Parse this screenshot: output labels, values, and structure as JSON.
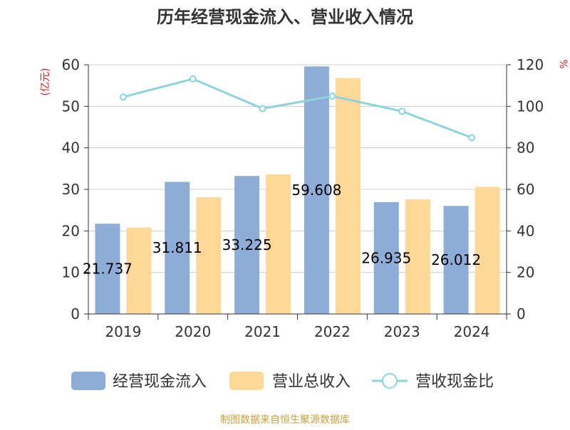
{
  "chart_data": {
    "type": "bar",
    "title": "历年经营现金流入、营业收入情况",
    "categories": [
      "2019",
      "2020",
      "2021",
      "2022",
      "2023",
      "2024"
    ],
    "y_left": {
      "label": "(亿元)",
      "ylim": [
        0,
        60
      ],
      "ticks": [
        0,
        10,
        20,
        30,
        40,
        50,
        60
      ]
    },
    "y_right": {
      "label": "%",
      "ylim": [
        0,
        120
      ],
      "ticks": [
        0,
        20,
        40,
        60,
        80,
        100,
        120
      ]
    },
    "series": [
      {
        "name": "经营现金流入",
        "kind": "bar",
        "axis": "left",
        "color": "#8eacd8",
        "values": [
          21.737,
          31.811,
          33.225,
          59.608,
          26.935,
          26.012
        ],
        "labels": [
          "21.737",
          "31.811",
          "33.225",
          "59.608",
          "26.935",
          "26.012"
        ]
      },
      {
        "name": "营业总收入",
        "kind": "bar",
        "axis": "left",
        "color": "#ffd898",
        "values": [
          20.8,
          28.1,
          33.6,
          56.8,
          27.6,
          30.6
        ]
      },
      {
        "name": "营收现金比",
        "kind": "line",
        "axis": "right",
        "color": "#8dd3dc",
        "values": [
          104.5,
          113.2,
          98.9,
          104.9,
          97.6,
          84.9
        ]
      }
    ],
    "grid": true,
    "legend_position": "bottom",
    "source": "制图数据来自恒生聚源数据库",
    "colors": {
      "title": "#333333",
      "axis_label": "#e0201e",
      "source": "#c8a040",
      "axis": "#333333",
      "grid": "#cccccc"
    }
  }
}
